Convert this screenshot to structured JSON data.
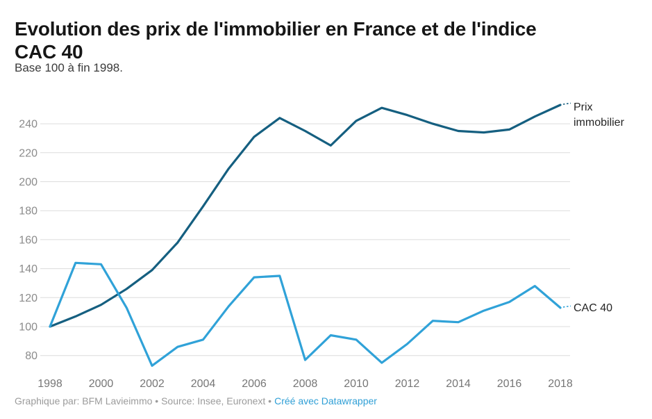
{
  "header": {
    "title_line1": "Evolution des prix de l'immobilier en France et de l'indice",
    "title_line2": "CAC 40",
    "subtitle": "Base 100 à fin 1998."
  },
  "footer": {
    "credit": "Graphique par: BFM Lavieimmo • Source: Insee, Euronext •",
    "link_label": "Créé avec Datawrapper"
  },
  "chart_data": {
    "type": "line",
    "title": "Evolution des prix de l'immobilier en France et de l'indice CAC 40",
    "subtitle": "Base 100 à fin 1998.",
    "x": [
      1998,
      1999,
      2000,
      2001,
      2002,
      2003,
      2004,
      2005,
      2006,
      2007,
      2008,
      2009,
      2010,
      2011,
      2012,
      2013,
      2014,
      2015,
      2016,
      2017,
      2018
    ],
    "series": [
      {
        "id": "prix-immobilier",
        "name": "Prix immobilier",
        "label_lines": [
          "Prix",
          "immobilier"
        ],
        "color": "#155f80",
        "values": [
          100,
          107,
          115,
          126,
          139,
          158,
          183,
          209,
          231,
          244,
          235,
          225,
          242,
          251,
          246,
          240,
          235,
          234,
          236,
          245,
          253
        ]
      },
      {
        "id": "cac-40",
        "name": "CAC 40",
        "label_lines": [
          "CAC 40"
        ],
        "color": "#30a2d8",
        "values": [
          100,
          144,
          143,
          113,
          73,
          86,
          91,
          114,
          134,
          135,
          77,
          94,
          91,
          75,
          88,
          104,
          103,
          111,
          117,
          128,
          113
        ]
      }
    ],
    "xticks": [
      1998,
      2000,
      2002,
      2004,
      2006,
      2008,
      2010,
      2012,
      2014,
      2016,
      2018
    ],
    "yticks": [
      80,
      100,
      120,
      140,
      160,
      180,
      200,
      220,
      240
    ],
    "xlim": [
      1998,
      2018
    ],
    "ylim": [
      73,
      253
    ],
    "grid": "horizontal",
    "legend_position": "line-end-right",
    "grid_color": "#dcdcdc",
    "y_tick_color": "#8b8b8b",
    "x_tick_color": "#767676"
  }
}
